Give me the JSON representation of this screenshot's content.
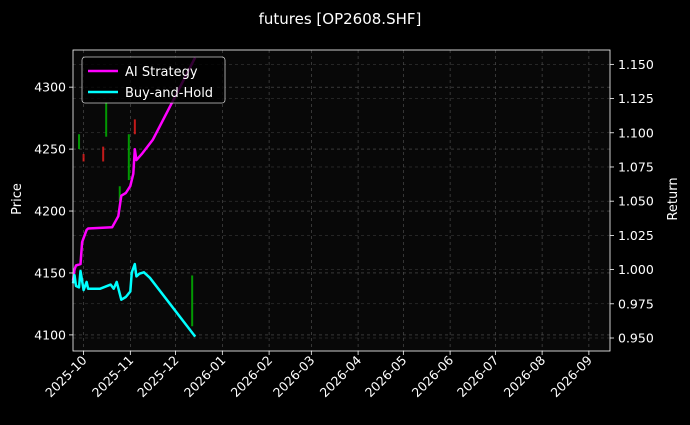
{
  "chart_data": {
    "type": "line",
    "title": "futures [OP2608.SHF]",
    "ylabel_left": "Price",
    "ylabel_right": "Return",
    "y_left_lim": [
      4087,
      4330
    ],
    "y_right_lim": [
      0.9405,
      1.1605
    ],
    "y_left_ticks": [
      4100,
      4150,
      4200,
      4250,
      4300
    ],
    "y_right_ticks": [
      0.95,
      0.975,
      1.0,
      1.025,
      1.05,
      1.075,
      1.1,
      1.125,
      1.15
    ],
    "y_right_tick_labels": [
      "0.950",
      "0.975",
      "1.000",
      "1.025",
      "1.050",
      "1.075",
      "1.100",
      "1.125",
      "1.150"
    ],
    "x_lim": [
      "2025-09-24",
      "2026-09-15"
    ],
    "x_ticks": [
      "2025-10-01",
      "2025-11-01",
      "2025-12-01",
      "2026-01-01",
      "2026-02-01",
      "2026-03-01",
      "2026-04-01",
      "2026-05-01",
      "2026-06-01",
      "2026-07-01",
      "2026-08-01",
      "2026-09-01"
    ],
    "x_tick_labels": [
      "2025-10",
      "2025-11",
      "2025-12",
      "2026-01",
      "2026-02",
      "2026-03",
      "2026-04",
      "2026-05",
      "2026-06",
      "2026-07",
      "2026-08",
      "2026-09"
    ],
    "grid": true,
    "legend_position": "top-left",
    "series": [
      {
        "name": "AI Strategy",
        "color": "#ff00ff",
        "x": [
          "2025-09-24",
          "2025-09-25",
          "2025-09-26",
          "2025-09-29",
          "2025-09-30",
          "2025-10-01",
          "2025-10-03",
          "2025-10-04",
          "2025-10-20",
          "2025-10-24",
          "2025-10-26",
          "2025-10-29",
          "2025-11-01",
          "2025-11-03",
          "2025-11-04",
          "2025-11-05",
          "2025-11-09",
          "2025-11-16",
          "2025-11-30",
          "2025-12-14"
        ],
        "y": [
          0.992,
          1.0,
          1.003,
          1.004,
          1.02,
          1.023,
          1.029,
          1.03,
          1.031,
          1.039,
          1.054,
          1.056,
          1.061,
          1.07,
          1.088,
          1.08,
          1.085,
          1.095,
          1.125,
          1.155
        ]
      },
      {
        "name": "Buy-and-Hold",
        "color": "#00ffff",
        "x": [
          "2025-09-24",
          "2025-09-25",
          "2025-09-26",
          "2025-09-28",
          "2025-09-29",
          "2025-10-01",
          "2025-10-03",
          "2025-10-04",
          "2025-10-12",
          "2025-10-19",
          "2025-10-21",
          "2025-10-23",
          "2025-10-26",
          "2025-10-29",
          "2025-11-01",
          "2025-11-02",
          "2025-11-04",
          "2025-11-05",
          "2025-11-07",
          "2025-11-10",
          "2025-11-14",
          "2025-12-14"
        ],
        "y": [
          0.99,
          0.996,
          0.988,
          0.987,
          0.999,
          0.985,
          0.991,
          0.986,
          0.986,
          0.989,
          0.986,
          0.991,
          0.978,
          0.98,
          0.984,
          0.998,
          1.004,
          0.995,
          0.997,
          0.998,
          0.994,
          0.951
        ]
      }
    ],
    "candles": [
      {
        "x": "2025-09-28",
        "low": 4250,
        "high": 4262,
        "color": "#00c800"
      },
      {
        "x": "2025-10-01",
        "low": 4240,
        "high": 4246,
        "color": "#ff2020"
      },
      {
        "x": "2025-10-14",
        "low": 4240,
        "high": 4252,
        "color": "#ff2020"
      },
      {
        "x": "2025-10-16",
        "low": 4260,
        "high": 4288,
        "color": "#00c800"
      },
      {
        "x": "2025-10-25",
        "low": 4208,
        "high": 4220,
        "color": "#00c800"
      },
      {
        "x": "2025-10-31",
        "low": 4225,
        "high": 4262,
        "color": "#00c800"
      },
      {
        "x": "2025-11-04",
        "low": 4262,
        "high": 4274,
        "color": "#ff2020"
      },
      {
        "x": "2025-12-12",
        "low": 4107,
        "high": 4148,
        "color": "#00c800"
      }
    ]
  }
}
